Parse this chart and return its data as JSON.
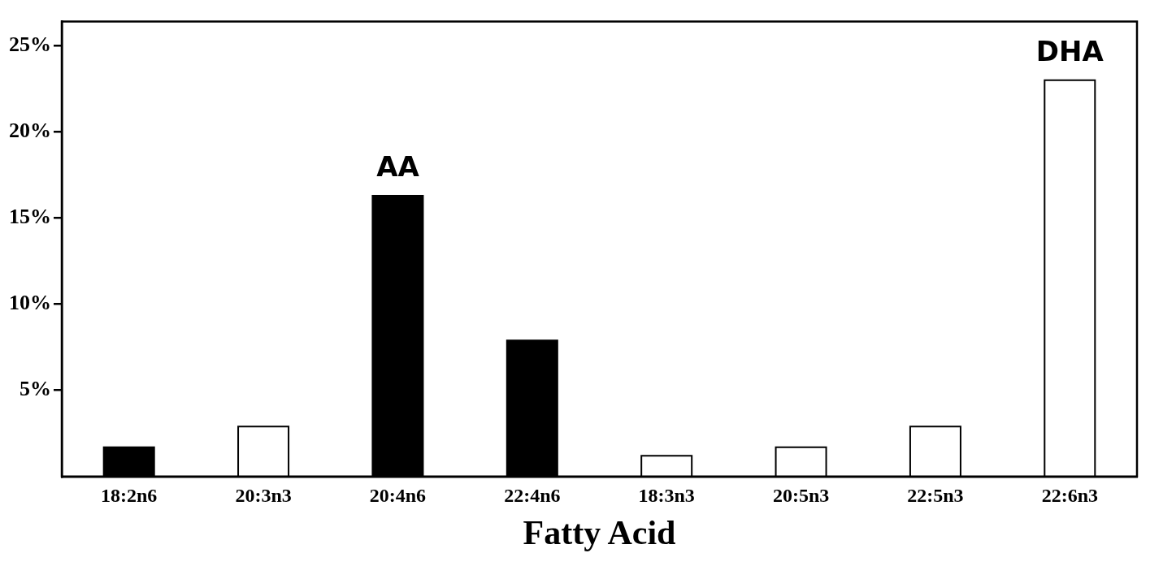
{
  "chart_data": {
    "type": "bar",
    "xlabel": "Fatty Acid",
    "categories": [
      "18:2n6",
      "20:3n3",
      "20:4n6",
      "22:4n6",
      "18:3n3",
      "20:5n3",
      "22:5n3",
      "22:6n3"
    ],
    "values": [
      1.7,
      2.9,
      16.3,
      7.9,
      1.2,
      1.7,
      2.9,
      23.0
    ],
    "colors": [
      "#000000",
      "#ffffff",
      "#000000",
      "#000000",
      "#ffffff",
      "#ffffff",
      "#ffffff",
      "#ffffff"
    ],
    "ylim": [
      0,
      26.4
    ],
    "yticks": [
      {
        "value": 5,
        "label": "5%"
      },
      {
        "value": 10,
        "label": "10%"
      },
      {
        "value": 15,
        "label": "15%"
      },
      {
        "value": 20,
        "label": "20%"
      },
      {
        "value": 25,
        "label": "25%"
      }
    ],
    "annotations": [
      {
        "text": "AA",
        "x": "20:4n6",
        "y": 16.3
      },
      {
        "text": "DHA",
        "x": "22:6n3",
        "y": 23.0
      }
    ],
    "grid": false,
    "legend": false
  }
}
